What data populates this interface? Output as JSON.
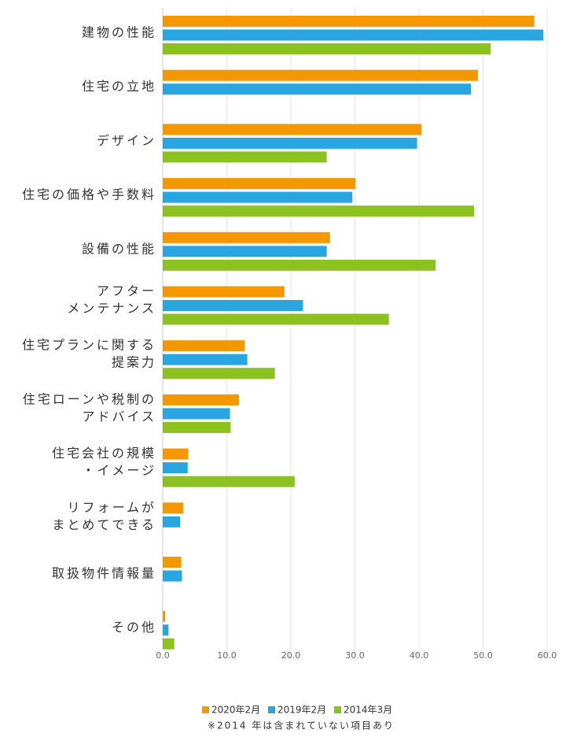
{
  "chart_data": {
    "type": "bar",
    "orientation": "horizontal",
    "categories": [
      [
        "建物の性能"
      ],
      [
        "住宅の立地"
      ],
      [
        "デザイン"
      ],
      [
        "住宅の価格や手数料"
      ],
      [
        "設備の性能"
      ],
      [
        "アフター",
        "メンテナンス"
      ],
      [
        "住宅プランに関する",
        "提案力"
      ],
      [
        "住宅ローンや税制の",
        "アドバイス"
      ],
      [
        "住宅会社の規模",
        "・イメージ"
      ],
      [
        "リフォームが",
        "まとめてできる"
      ],
      [
        "取扱物件情報量"
      ],
      [
        "その他"
      ]
    ],
    "series": [
      {
        "name": "2020年2月",
        "color": "#f39800",
        "values": [
          58.0,
          49.2,
          40.4,
          30.1,
          26.1,
          19.0,
          12.8,
          11.9,
          4.0,
          3.2,
          2.9,
          0.4
        ]
      },
      {
        "name": "2019年2月",
        "color": "#29a6e0",
        "values": [
          59.4,
          48.1,
          39.7,
          29.6,
          25.6,
          21.9,
          13.2,
          10.5,
          3.9,
          2.7,
          3.0,
          0.9
        ]
      },
      {
        "name": "2014年3月",
        "color": "#8cc21f",
        "values": [
          51.2,
          null,
          25.6,
          48.6,
          42.6,
          35.3,
          17.5,
          10.6,
          20.6,
          null,
          null,
          1.8
        ]
      }
    ],
    "xlim": [
      0,
      60
    ],
    "xticks": [
      {
        "value": 0,
        "label": "0.0"
      },
      {
        "value": 10,
        "label": "10.0"
      },
      {
        "value": 20,
        "label": "20.0"
      },
      {
        "value": 30,
        "label": "30.0"
      },
      {
        "value": 40,
        "label": "40.0"
      },
      {
        "value": 50,
        "label": "50.0"
      },
      {
        "value": 60,
        "label": "60.0"
      }
    ],
    "grid": true,
    "legend": "bottom",
    "note": "※2014 年は含まれていない項目あり"
  }
}
